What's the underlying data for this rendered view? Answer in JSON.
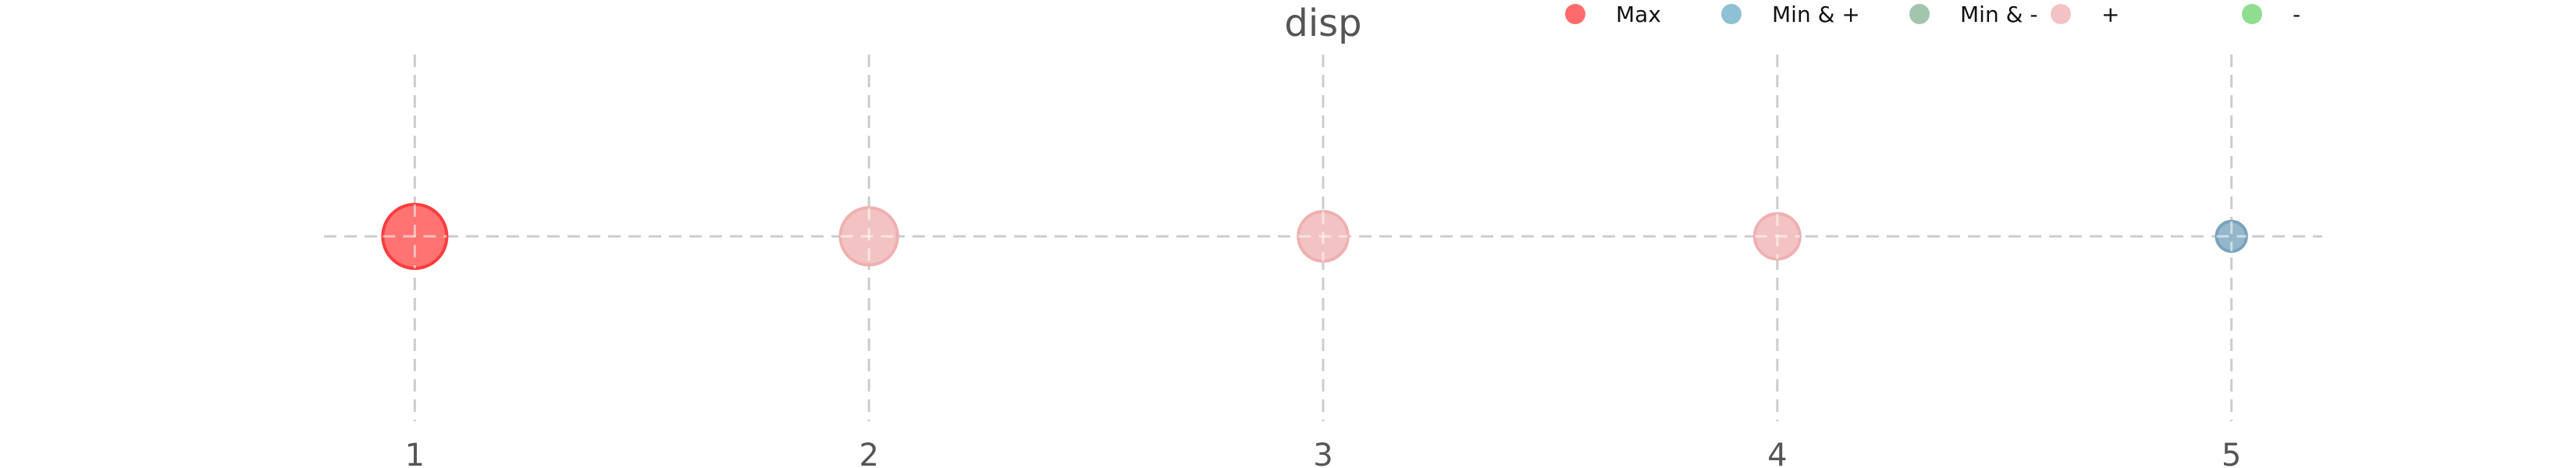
{
  "chart_data": {
    "type": "scatter",
    "title": "disp",
    "xlabel": "",
    "ylabel": "",
    "xlim": [
      0.8,
      5.2
    ],
    "x_ticks": [
      "1",
      "2",
      "3",
      "4",
      "5"
    ],
    "grid": true,
    "legend_position": "top-right",
    "legend": [
      {
        "name": "Max",
        "color": "#ff6b6b"
      },
      {
        "name": "Min & +",
        "color": "#8fc1d4"
      },
      {
        "name": "Min & -",
        "color": "#a3c4ad"
      },
      {
        "name": "+",
        "color": "#f4c2c2"
      },
      {
        "name": "-",
        "color": "#90dd90"
      }
    ],
    "points": [
      {
        "x": 1,
        "y": 0,
        "relative_size": 1.0,
        "category": "Max",
        "color": "#ff6b6b",
        "edge_color": "#ff3b3b"
      },
      {
        "x": 2,
        "y": 0,
        "relative_size": 0.8,
        "category": "+",
        "color": "#f2c0c0",
        "edge_color": "#eeb0b0"
      },
      {
        "x": 3,
        "y": 0,
        "relative_size": 0.6,
        "category": "+",
        "color": "#f2c0c0",
        "edge_color": "#eeb0b0"
      },
      {
        "x": 4,
        "y": 0,
        "relative_size": 0.5,
        "category": "+",
        "color": "#f2c0c0",
        "edge_color": "#eeb0b0"
      },
      {
        "x": 5,
        "y": 0,
        "relative_size": 0.22,
        "category": "Min & +",
        "color": "#8fb3c8",
        "edge_color": "#7aa3bb"
      }
    ]
  }
}
